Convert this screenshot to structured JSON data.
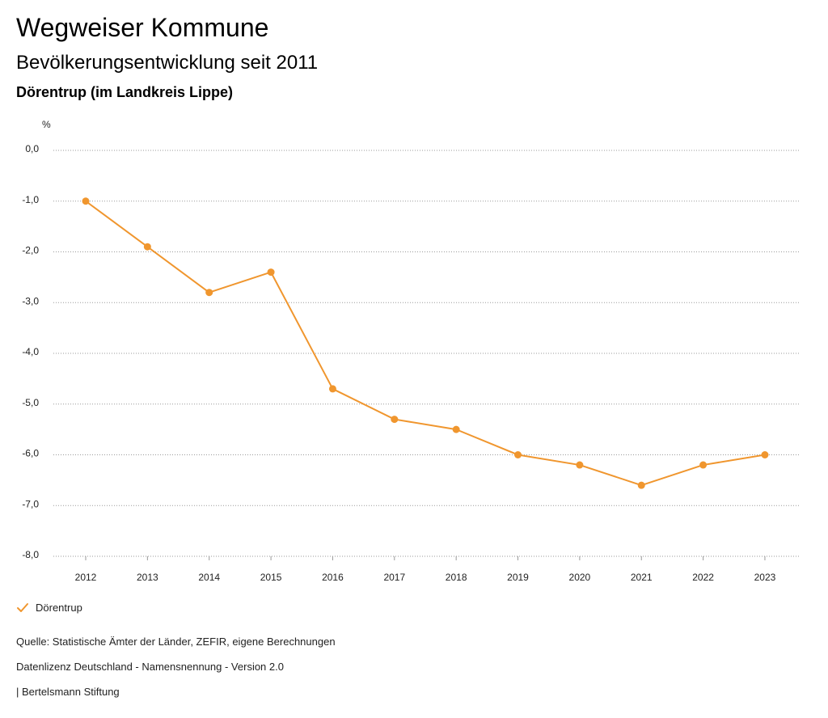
{
  "header": {
    "title": "Wegweiser Kommune",
    "subtitle": "Bevölkerungsentwicklung seit 2011",
    "region": "Dörentrup (im Landkreis Lippe)"
  },
  "chart_data": {
    "type": "line",
    "ylabel": "%",
    "ylim": [
      -8.0,
      0.0
    ],
    "y_ticks": [
      "0,0",
      "-1,0",
      "-2,0",
      "-3,0",
      "-4,0",
      "-5,0",
      "-6,0",
      "-7,0",
      "-8,0"
    ],
    "y_tick_values": [
      0,
      -1,
      -2,
      -3,
      -4,
      -5,
      -6,
      -7,
      -8
    ],
    "categories": [
      "2012",
      "2013",
      "2014",
      "2015",
      "2016",
      "2017",
      "2018",
      "2019",
      "2020",
      "2021",
      "2022",
      "2023"
    ],
    "series": [
      {
        "name": "Dörentrup",
        "color": "#f0962e",
        "values": [
          -1.0,
          -1.9,
          -2.8,
          -2.4,
          -4.7,
          -5.3,
          -5.5,
          -6.0,
          -6.2,
          -6.6,
          -6.2,
          -6.0
        ]
      }
    ],
    "grid": true,
    "legend": "bottom-left"
  },
  "legend": {
    "label": "Dörentrup",
    "color": "#f0962e"
  },
  "footer": {
    "source": "Quelle: Statistische Ämter der Länder, ZEFIR, eigene Berechnungen",
    "license": "Datenlizenz Deutschland - Namensnennung - Version 2.0",
    "publisher": "| Bertelsmann Stiftung"
  }
}
